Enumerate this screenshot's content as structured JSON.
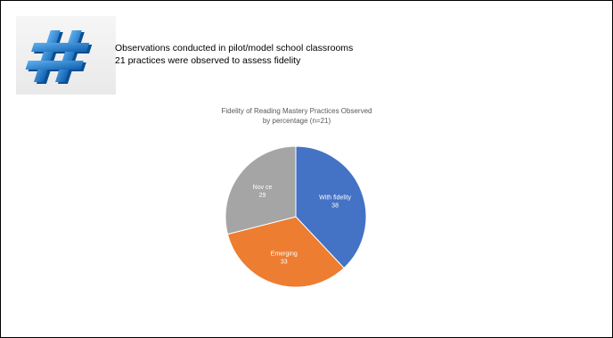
{
  "slide": {
    "lines": [
      "Observations conducted in pilot/model school classrooms",
      "21 practices were observed to assess fidelity"
    ]
  },
  "icon": {
    "name": "hashtag-icon",
    "color": "#1a74c7"
  },
  "chart_data": {
    "type": "pie",
    "title_lines": [
      "Fidelity of Reading Mastery Practices Observed",
      "by percentage (n=21)"
    ],
    "slices": [
      {
        "label": "With fidelity",
        "value": 38,
        "color": "#4472c4"
      },
      {
        "label": "Emerging",
        "value": 33,
        "color": "#ed7d31"
      },
      {
        "label": "Nov ce",
        "value": 29,
        "color": "#a5a5a5"
      }
    ],
    "start": "12 o'clock",
    "direction": "clockwise",
    "data_label_color": "#ffffff"
  }
}
